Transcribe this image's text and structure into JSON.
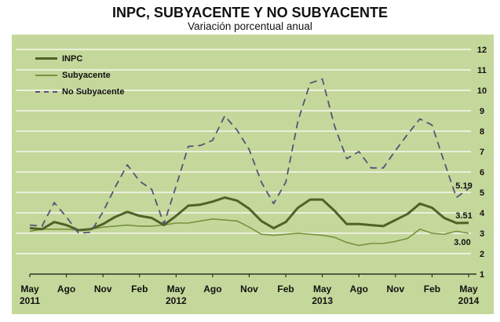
{
  "header": {
    "title": "INPC, SUBYACENTE Y NO SUBYACENTE",
    "subtitle": "Variación porcentual anual"
  },
  "legend": [
    {
      "label": "INPC",
      "color": "#4f6228",
      "style": "solid-thick"
    },
    {
      "label": "Subyacente",
      "color": "#77933c",
      "style": "solid-thin"
    },
    {
      "label": "No Subyacente",
      "color": "#5a5078",
      "style": "dashed"
    }
  ],
  "annotations": {
    "no_subyacente_last": "5.19",
    "inpc_last": "3.51",
    "subyacente_last": "3.00"
  },
  "colors": {
    "background": "#c5d89b",
    "gridline": "#ffffff",
    "inpc": "#4f6228",
    "subyacente": "#77933c",
    "no_subyacente": "#5a5078"
  },
  "chart_data": {
    "type": "line",
    "title": "INPC, SUBYACENTE Y NO SUBYACENTE",
    "subtitle": "Variación porcentual anual",
    "xlabel": "",
    "ylabel": "",
    "ylim": [
      1,
      12
    ],
    "yticks": [
      1,
      2,
      3,
      4,
      5,
      6,
      7,
      8,
      9,
      10,
      11,
      12
    ],
    "y_axis_position": "right",
    "grid": true,
    "legend_position": "upper-left",
    "x_tick_labels": [
      {
        "month": "May",
        "year": "2011"
      },
      {
        "month": "Ago",
        "year": ""
      },
      {
        "month": "Nov",
        "year": ""
      },
      {
        "month": "Feb",
        "year": ""
      },
      {
        "month": "May",
        "year": "2012"
      },
      {
        "month": "Ago",
        "year": ""
      },
      {
        "month": "Nov",
        "year": ""
      },
      {
        "month": "Feb",
        "year": ""
      },
      {
        "month": "May",
        "year": "2013"
      },
      {
        "month": "Ago",
        "year": ""
      },
      {
        "month": "Nov",
        "year": ""
      },
      {
        "month": "Feb",
        "year": ""
      },
      {
        "month": "May",
        "year": "2014"
      }
    ],
    "x": [
      "2011-05",
      "2011-06",
      "2011-07",
      "2011-08",
      "2011-09",
      "2011-10",
      "2011-11",
      "2011-12",
      "2012-01",
      "2012-02",
      "2012-03",
      "2012-04",
      "2012-05",
      "2012-06",
      "2012-07",
      "2012-08",
      "2012-09",
      "2012-10",
      "2012-11",
      "2012-12",
      "2013-01",
      "2013-02",
      "2013-03",
      "2013-04",
      "2013-05",
      "2013-06",
      "2013-07",
      "2013-08",
      "2013-09",
      "2013-10",
      "2013-11",
      "2013-12",
      "2014-01",
      "2014-02",
      "2014-03",
      "2014-04",
      "2014-05"
    ],
    "series": [
      {
        "name": "INPC",
        "values": [
          3.25,
          3.2,
          3.55,
          3.4,
          3.15,
          3.2,
          3.45,
          3.8,
          4.05,
          3.85,
          3.75,
          3.4,
          3.85,
          4.35,
          4.4,
          4.55,
          4.75,
          4.6,
          4.2,
          3.6,
          3.25,
          3.55,
          4.25,
          4.65,
          4.65,
          4.1,
          3.45,
          3.45,
          3.4,
          3.35,
          3.65,
          3.95,
          4.45,
          4.25,
          3.75,
          3.5,
          3.51
        ]
      },
      {
        "name": "Subyacente",
        "values": [
          3.1,
          3.2,
          3.2,
          3.2,
          3.15,
          3.2,
          3.3,
          3.35,
          3.4,
          3.35,
          3.35,
          3.4,
          3.5,
          3.5,
          3.6,
          3.7,
          3.65,
          3.6,
          3.3,
          2.95,
          2.9,
          2.95,
          3.0,
          2.95,
          2.9,
          2.8,
          2.55,
          2.4,
          2.5,
          2.5,
          2.6,
          2.75,
          3.2,
          3.0,
          2.95,
          3.1,
          3.0
        ]
      },
      {
        "name": "No Subyacente",
        "values": [
          3.4,
          3.35,
          4.5,
          3.8,
          3.0,
          3.05,
          4.05,
          5.25,
          6.35,
          5.55,
          5.15,
          3.45,
          5.3,
          7.25,
          7.3,
          7.55,
          8.75,
          8.05,
          7.1,
          5.5,
          4.45,
          5.5,
          8.5,
          10.35,
          10.55,
          8.25,
          6.65,
          7.0,
          6.2,
          6.2,
          7.05,
          7.85,
          8.6,
          8.3,
          6.5,
          4.75,
          5.19
        ]
      }
    ],
    "annotations": [
      {
        "series": "No Subyacente",
        "x": "2014-05",
        "text": "5.19"
      },
      {
        "series": "INPC",
        "x": "2014-05",
        "text": "3.51"
      },
      {
        "series": "Subyacente",
        "x": "2014-05",
        "text": "3.00"
      }
    ]
  }
}
